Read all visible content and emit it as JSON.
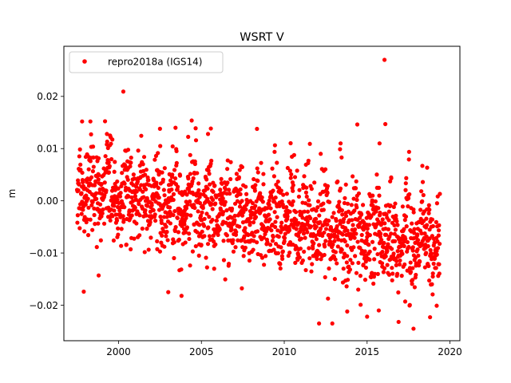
{
  "chart_data": {
    "type": "scatter",
    "title": "WSRT V",
    "xlabel": "",
    "ylabel": "m",
    "xlim": [
      1996.7,
      2020.6
    ],
    "ylim": [
      -0.0268,
      0.0296
    ],
    "x_ticks": [
      2000,
      2005,
      2010,
      2015,
      2020
    ],
    "x_tick_labels": [
      "2000",
      "2005",
      "2010",
      "2015",
      "2020"
    ],
    "y_ticks": [
      -0.02,
      -0.01,
      0.0,
      0.01,
      0.02
    ],
    "y_tick_labels": [
      "−0.02",
      "−0.01",
      "0.00",
      "0.01",
      "0.02"
    ],
    "grid": false,
    "legend_position": "top-left",
    "series": [
      {
        "name": "repro2018a (IGS14)",
        "color": "#ff0000",
        "marker": "circle",
        "time_span": [
          1997.5,
          2019.4
        ],
        "trend_start": 0.0025,
        "trend_end": -0.0085,
        "approx_spread": 0.0075,
        "annual_signal": true,
        "outliers": [
          {
            "x": 2016.05,
            "y": 0.027
          },
          {
            "x": 2016.1,
            "y": 0.0147
          },
          {
            "x": 2015.75,
            "y": 0.011
          },
          {
            "x": 1997.8,
            "y": 0.0152
          },
          {
            "x": 1998.3,
            "y": 0.0152
          },
          {
            "x": 2002.5,
            "y": 0.0138
          },
          {
            "x": 2005.4,
            "y": 0.0128
          },
          {
            "x": 2013.4,
            "y": 0.011
          },
          {
            "x": 2012.2,
            "y": 0.009
          },
          {
            "x": 1997.9,
            "y": -0.0174
          },
          {
            "x": 1998.8,
            "y": -0.0143
          },
          {
            "x": 2003.0,
            "y": -0.0175
          },
          {
            "x": 2003.8,
            "y": -0.0182
          },
          {
            "x": 2012.1,
            "y": -0.0235
          },
          {
            "x": 2012.9,
            "y": -0.0235
          },
          {
            "x": 2013.8,
            "y": -0.0212
          },
          {
            "x": 2015.0,
            "y": -0.0222
          },
          {
            "x": 2016.9,
            "y": -0.0232
          },
          {
            "x": 2017.8,
            "y": -0.0245
          },
          {
            "x": 2018.8,
            "y": -0.0223
          },
          {
            "x": 2019.2,
            "y": -0.0201
          }
        ]
      }
    ]
  }
}
